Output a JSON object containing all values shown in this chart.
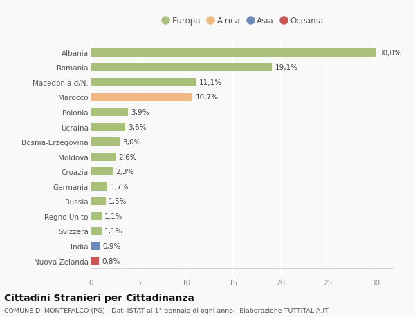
{
  "countries": [
    "Albania",
    "Romania",
    "Macedonia d/N.",
    "Marocco",
    "Polonia",
    "Ucraina",
    "Bosnia-Erzegovina",
    "Moldova",
    "Croazia",
    "Germania",
    "Russia",
    "Regno Unito",
    "Svizzera",
    "India",
    "Nuova Zelanda"
  ],
  "values": [
    30.0,
    19.1,
    11.1,
    10.7,
    3.9,
    3.6,
    3.0,
    2.6,
    2.3,
    1.7,
    1.5,
    1.1,
    1.1,
    0.9,
    0.8
  ],
  "labels": [
    "30,0%",
    "19,1%",
    "11,1%",
    "10,7%",
    "3,9%",
    "3,6%",
    "3,0%",
    "2,6%",
    "2,3%",
    "1,7%",
    "1,5%",
    "1,1%",
    "1,1%",
    "0,9%",
    "0,8%"
  ],
  "continents": [
    "Europa",
    "Europa",
    "Europa",
    "Africa",
    "Europa",
    "Europa",
    "Europa",
    "Europa",
    "Europa",
    "Europa",
    "Europa",
    "Europa",
    "Europa",
    "Asia",
    "Oceania"
  ],
  "colors": {
    "Europa": "#a8c07a",
    "Africa": "#f0b882",
    "Asia": "#6b8cba",
    "Oceania": "#cc5555"
  },
  "legend_colors": {
    "Europa": "#a8c07a",
    "Africa": "#f0b882",
    "Asia": "#6b8cba",
    "Oceania": "#cc5555"
  },
  "xlim": [
    0,
    32
  ],
  "xticks": [
    0,
    5,
    10,
    15,
    20,
    25,
    30
  ],
  "title": "Cittadini Stranieri per Cittadinanza",
  "subtitle": "COMUNE DI MONTEFALCO (PG) - Dati ISTAT al 1° gennaio di ogni anno - Elaborazione TUTTITALIA.IT",
  "background_color": "#f9f9f9",
  "grid_color": "#ffffff",
  "bar_height": 0.55,
  "label_fontsize": 7.5,
  "tick_fontsize": 7.5,
  "title_fontsize": 10,
  "subtitle_fontsize": 6.8
}
